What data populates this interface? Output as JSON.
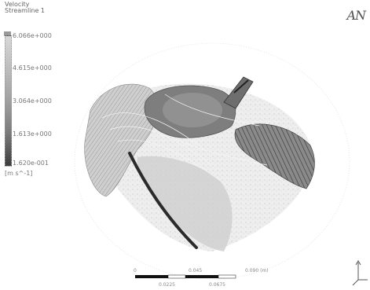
{
  "legend": {
    "variable": "Velocity",
    "name": "Streamline 1",
    "ticks": [
      "6.066e+000",
      "4.615e+000",
      "3.064e+000",
      "1.613e+000",
      "1.620e-001"
    ],
    "unit": "[m s^-1]"
  },
  "logo_text": "AN",
  "scale_bar": {
    "labels": [
      "0",
      "0.045",
      "0.090 (m)",
      "0.0225",
      "0.0675"
    ]
  },
  "colors": {
    "background": "#ffffff",
    "surface_light": "#d9d9d9",
    "surface_dark": "#6a6a6a",
    "streamline_dark": "#2b2b2b"
  },
  "icons": [
    "triad-axis-icon"
  ]
}
